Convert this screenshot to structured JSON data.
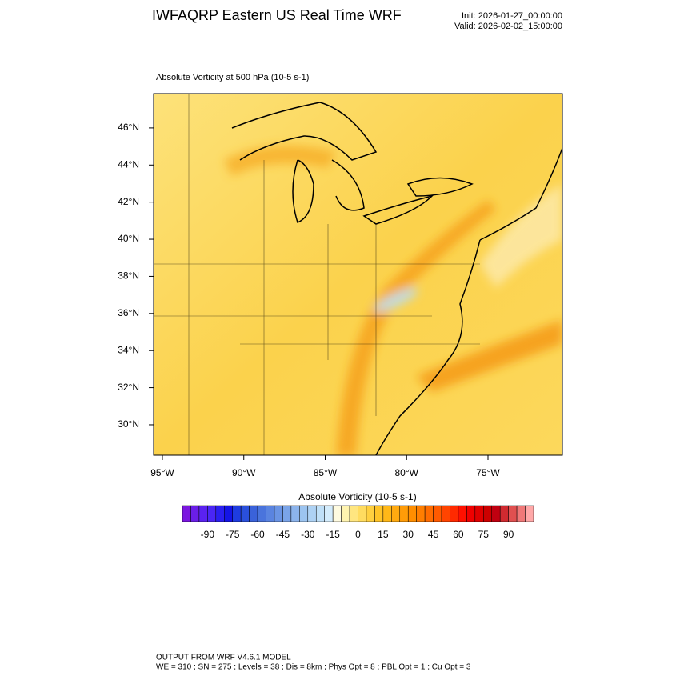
{
  "header": {
    "title": "IWFAQRP Eastern US Real Time WRF",
    "init": "Init: 2026-01-27_00:00:00",
    "valid": "Valid: 2026-02-02_15:00:00"
  },
  "map": {
    "subtitle": "Absolute Vorticity at 500 hPa   (10-5 s-1)",
    "lat_lim": [
      28.36,
      47.85
    ],
    "lat_ticks": [
      {
        "value": 30,
        "label": "30°N"
      },
      {
        "value": 32,
        "label": "32°N"
      },
      {
        "value": 34,
        "label": "34°N"
      },
      {
        "value": 36,
        "label": "36°N"
      },
      {
        "value": 38,
        "label": "38°N"
      },
      {
        "value": 40,
        "label": "40°N"
      },
      {
        "value": 42,
        "label": "42°N"
      },
      {
        "value": 44,
        "label": "44°N"
      },
      {
        "value": 46,
        "label": "46°N"
      }
    ],
    "lon_lim": [
      -95.54,
      -70.43
    ],
    "lon_ticks": [
      {
        "value": -95,
        "label": "95°W"
      },
      {
        "value": -90,
        "label": "90°W"
      },
      {
        "value": -85,
        "label": "85°W"
      },
      {
        "value": -80,
        "label": "80°W"
      },
      {
        "value": -75,
        "label": "75°W"
      }
    ]
  },
  "colorbar": {
    "title": "Absolute Vorticity  (10-5 s-1)",
    "lim": [
      -105,
      105
    ],
    "ticks": [
      -90,
      -75,
      -60,
      -45,
      -30,
      -15,
      0,
      15,
      30,
      45,
      60,
      75,
      90
    ],
    "colors": [
      "#7b16e0",
      "#6a1ee8",
      "#5a22f0",
      "#4a26f5",
      "#2a1ff0",
      "#1414e6",
      "#1e3ce0",
      "#2a50dc",
      "#3a62da",
      "#4a74dc",
      "#5a84e0",
      "#6a94e4",
      "#7aa4e8",
      "#8cb4ec",
      "#9cc4f0",
      "#aed2f4",
      "#c0e0f8",
      "#d4ecfc",
      "#fffbe0",
      "#fff4b0",
      "#ffe680",
      "#ffdc60",
      "#ffd040",
      "#ffc428",
      "#ffb818",
      "#ffaa10",
      "#ff9c08",
      "#ff8e00",
      "#ff7e00",
      "#ff6c00",
      "#ff5a00",
      "#ff4400",
      "#ff2a00",
      "#ff1000",
      "#f00000",
      "#e00000",
      "#cc0000",
      "#c00010",
      "#d02a30",
      "#e05050",
      "#f07878",
      "#ffa8a8"
    ]
  },
  "footer": {
    "lines": [
      "OUTPUT FROM WRF V4.6.1 MODEL",
      "WE = 310 ; SN = 275 ; Levels = 38 ; Dis = 8km ; Phys Opt = 8 ; PBL Opt = 1 ; Cu Opt = 3"
    ]
  }
}
